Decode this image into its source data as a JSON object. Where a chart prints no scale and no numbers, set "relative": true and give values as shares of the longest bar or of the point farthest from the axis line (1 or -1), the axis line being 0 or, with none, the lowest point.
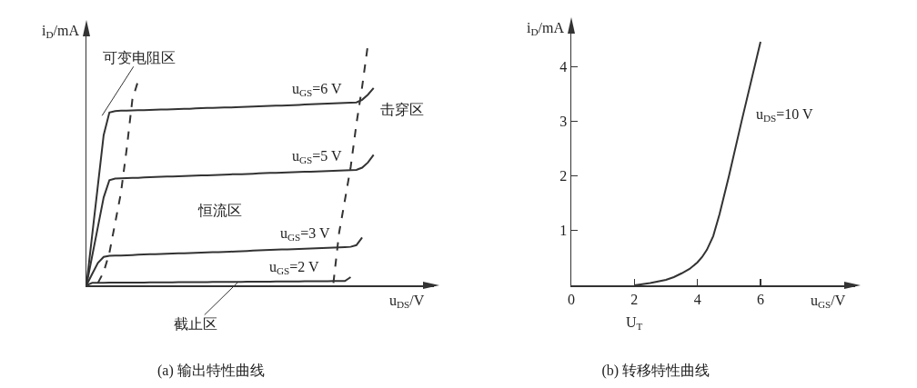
{
  "chart_data": [
    {
      "type": "line",
      "relative": true,
      "title": "(a) 输出特性曲线",
      "xlabel": "u$_{DS}$/V",
      "ylabel": "i$_{D}$/mA",
      "grid": false,
      "legend": false,
      "marker": "none",
      "line_style": "solid",
      "categories": [
        null,
        null,
        null,
        null,
        null,
        null,
        null,
        null,
        null,
        null,
        null,
        null,
        null,
        null,
        null,
        null,
        null,
        null,
        null,
        null,
        null,
        null,
        null,
        null,
        null,
        null,
        null,
        null,
        null,
        null,
        null,
        null,
        null,
        null,
        null,
        null,
        null,
        null,
        null,
        null,
        null,
        null,
        null,
        null,
        null,
        null,
        null,
        null,
        null,
        null,
        null
      ],
      "series": [
        {
          "name": "u$_{GS}$=6 V",
          "color": "#333333",
          "values": [
            0,
            0.208,
            0.416,
            0.624,
            0.718,
            0.724,
            0.726,
            0.726,
            0.727,
            0.728,
            0.728,
            0.729,
            0.73,
            0.731,
            0.731,
            0.732,
            0.733,
            0.734,
            0.734,
            0.735,
            0.736,
            0.737,
            0.737,
            0.738,
            0.739,
            0.739,
            0.74,
            0.741,
            0.742,
            0.743,
            0.744,
            0.745,
            0.746,
            0.747,
            0.747,
            0.748,
            0.749,
            0.75,
            0.751,
            0.752,
            0.753,
            0.754,
            0.755,
            0.756,
            0.757,
            0.758,
            0.759,
            0.76,
            0.771,
            0.792,
            0.82
          ]
        },
        {
          "name": "u$_{GS}$=5 V",
          "color": "#333333",
          "values": [
            0,
            0.122,
            0.243,
            0.365,
            0.437,
            0.444,
            0.445,
            0.446,
            0.447,
            0.447,
            0.448,
            0.449,
            0.45,
            0.451,
            0.452,
            0.452,
            0.453,
            0.454,
            0.455,
            0.456,
            0.457,
            0.457,
            0.458,
            0.459,
            0.46,
            0.461,
            0.462,
            0.462,
            0.463,
            0.464,
            0.465,
            0.466,
            0.467,
            0.467,
            0.468,
            0.469,
            0.47,
            0.471,
            0.472,
            0.472,
            0.473,
            0.474,
            0.475,
            0.476,
            0.477,
            0.478,
            0.479,
            0.48,
            0.489,
            0.51,
            0.542
          ]
        },
        {
          "name": "u$_{GS}$=3 V",
          "color": "#333333",
          "values": [
            0,
            0.047,
            0.093,
            0.118,
            0.123,
            0.124,
            0.124,
            0.125,
            0.126,
            0.127,
            0.128,
            0.129,
            0.129,
            0.13,
            0.131,
            0.132,
            0.133,
            0.133,
            0.134,
            0.135,
            0.136,
            0.137,
            0.138,
            0.138,
            0.139,
            0.14,
            0.141,
            0.142,
            0.143,
            0.144,
            0.145,
            0.146,
            0.147,
            0.148,
            0.149,
            0.149,
            0.15,
            0.151,
            0.152,
            0.153,
            0.154,
            0.155,
            0.156,
            0.157,
            0.158,
            0.159,
            0.16,
            0.167,
            0.199,
            null,
            null
          ]
        },
        {
          "name": "u$_{GS}$=2 V",
          "color": "#333333",
          "values": [
            0,
            0.01,
            0.01,
            0.01,
            0.011,
            0.011,
            0.011,
            0.011,
            0.011,
            0.011,
            0.011,
            0.012,
            0.012,
            0.012,
            0.012,
            0.012,
            0.013,
            0.013,
            0.013,
            0.013,
            0.013,
            0.013,
            0.014,
            0.014,
            0.014,
            0.014,
            0.014,
            0.014,
            0.015,
            0.015,
            0.015,
            0.015,
            0.015,
            0.016,
            0.016,
            0.016,
            0.016,
            0.016,
            0.017,
            0.017,
            0.017,
            0.017,
            0.017,
            0.018,
            0.018,
            0.018,
            0.034,
            null,
            null,
            null,
            null
          ]
        },
        {
          "color": "#333333",
          "line_style": "dashed",
          "values": [
            null,
            null,
            0.01,
            0.055,
            0.135,
            0.259,
            0.383,
            0.565,
            0.772,
            0.85,
            null,
            null,
            null,
            null,
            null,
            null,
            null,
            null,
            null,
            null,
            null,
            null,
            null,
            null,
            null,
            null,
            null,
            null,
            null,
            null,
            null,
            null,
            null,
            null,
            null,
            null,
            null,
            null,
            null,
            null,
            null,
            null,
            null,
            null,
            null,
            null,
            null,
            null,
            null,
            null,
            null
          ]
        },
        {
          "color": "#333333",
          "line_style": "dashed",
          "values": [
            null,
            null,
            null,
            null,
            null,
            null,
            null,
            null,
            null,
            null,
            null,
            null,
            null,
            null,
            null,
            null,
            null,
            null,
            null,
            null,
            null,
            null,
            null,
            null,
            null,
            null,
            null,
            null,
            null,
            null,
            null,
            null,
            null,
            null,
            null,
            null,
            null,
            null,
            null,
            null,
            null,
            null,
            null,
            0.01,
            0.22,
            0.354,
            0.491,
            0.67,
            0.825,
            1.0,
            null
          ]
        }
      ],
      "annotations": [
        "可变电阻区",
        "击穿区",
        "恒流区",
        "截止区"
      ]
    },
    {
      "type": "line",
      "title": "(b) 转移特性曲线",
      "xlabel": "u$_{GS}$/V",
      "ylabel": "i$_{D}$/mA",
      "xlim": [
        0,
        9
      ],
      "ylim": [
        0,
        4.8
      ],
      "xticks": [
        0,
        2,
        4,
        6
      ],
      "yticks": [
        1,
        2,
        3,
        4
      ],
      "grid": false,
      "legend": false,
      "marker": "none",
      "line_style": "solid",
      "series": [
        {
          "name": "u$_{DS}$=10 V",
          "color": "#333333",
          "x": [
            2,
            2.25,
            2.5,
            2.75,
            3,
            3.25,
            3.5,
            3.75,
            4,
            4.15,
            4.3,
            4.5,
            4.7,
            5,
            5.4,
            6
          ],
          "values": [
            0,
            0.02,
            0.04,
            0.07,
            0.1,
            0.15,
            0.22,
            0.3,
            0.42,
            0.52,
            0.65,
            0.9,
            1.3,
            2.0,
            3.0,
            4.45
          ]
        }
      ],
      "annotations": [
        {
          "text": "U$_{T}$",
          "x": 2,
          "y": 0
        }
      ]
    }
  ]
}
